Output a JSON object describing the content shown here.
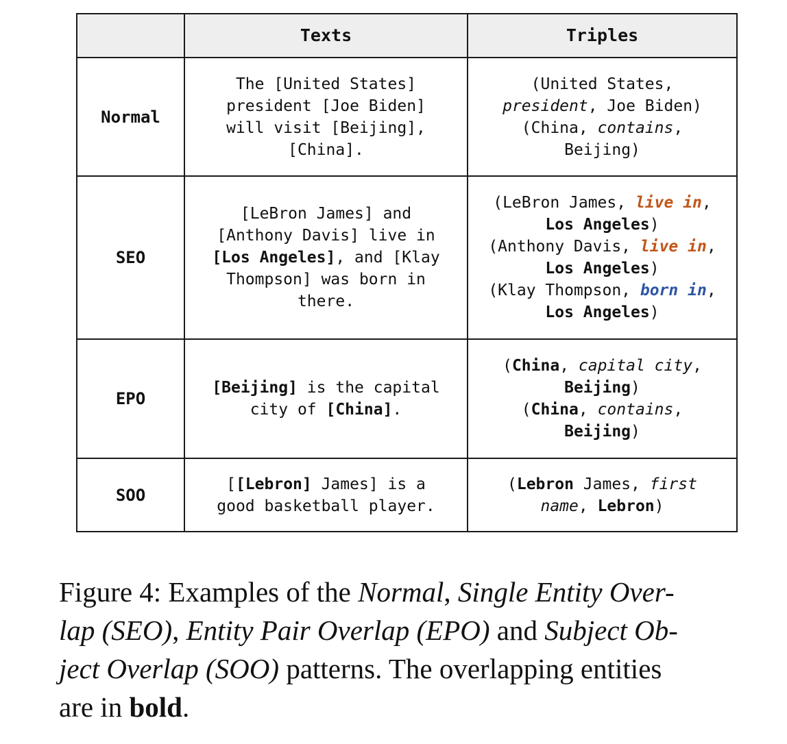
{
  "colors": {
    "relation_orange": "#c0561a",
    "relation_blue": "#2f55a4",
    "header_background": "#eeeeee"
  },
  "table": {
    "headers": {
      "texts": "Texts",
      "triples": "Triples"
    },
    "rows": [
      {
        "label": "Normal",
        "text_lines": [
          [
            {
              "t": "The [United States]"
            }
          ],
          [
            {
              "t": "president [Joe Biden]"
            }
          ],
          [
            {
              "t": "will visit [Beijing],"
            }
          ],
          [
            {
              "t": "[China]."
            }
          ]
        ],
        "triple_lines": [
          [
            {
              "t": "(United States,"
            }
          ],
          [
            {
              "t": "president",
              "s": "i"
            },
            {
              "t": ", Joe Biden)"
            }
          ],
          [
            {
              "t": "(China, "
            },
            {
              "t": "contains",
              "s": "i"
            },
            {
              "t": ","
            }
          ],
          [
            {
              "t": "Beijing)"
            }
          ]
        ]
      },
      {
        "label": "SEO",
        "text_lines": [
          [
            {
              "t": "[LeBron James] and"
            }
          ],
          [
            {
              "t": "[Anthony Davis] live in"
            }
          ],
          [
            {
              "t": "[Los Angeles]",
              "s": "b"
            },
            {
              "t": ", and [Klay"
            }
          ],
          [
            {
              "t": "Thompson] was born in"
            }
          ],
          [
            {
              "t": "there."
            }
          ]
        ],
        "triple_lines": [
          [
            {
              "t": "(LeBron James, "
            },
            {
              "t": "live in",
              "s": "o"
            },
            {
              "t": ","
            }
          ],
          [
            {
              "t": "Los Angeles",
              "s": "b"
            },
            {
              "t": ")"
            }
          ],
          [
            {
              "t": "(Anthony Davis, "
            },
            {
              "t": "live in",
              "s": "o"
            },
            {
              "t": ","
            }
          ],
          [
            {
              "t": "Los Angeles",
              "s": "b"
            },
            {
              "t": ")"
            }
          ],
          [
            {
              "t": "(Klay Thompson, "
            },
            {
              "t": "born in",
              "s": "u"
            },
            {
              "t": ","
            }
          ],
          [
            {
              "t": "Los Angeles",
              "s": "b"
            },
            {
              "t": ")"
            }
          ]
        ]
      },
      {
        "label": "EPO",
        "text_lines": [
          [
            {
              "t": "[Beijing]",
              "s": "b"
            },
            {
              "t": " is the capital"
            }
          ],
          [
            {
              "t": "city of "
            },
            {
              "t": "[China]",
              "s": "b"
            },
            {
              "t": "."
            }
          ]
        ],
        "triple_lines": [
          [
            {
              "t": "("
            },
            {
              "t": "China",
              "s": "b"
            },
            {
              "t": ", "
            },
            {
              "t": "capital city",
              "s": "i"
            },
            {
              "t": ","
            }
          ],
          [
            {
              "t": "Beijing",
              "s": "b"
            },
            {
              "t": ")"
            }
          ],
          [
            {
              "t": "("
            },
            {
              "t": "China",
              "s": "b"
            },
            {
              "t": ", "
            },
            {
              "t": "contains",
              "s": "i"
            },
            {
              "t": ","
            }
          ],
          [
            {
              "t": "Beijing",
              "s": "b"
            },
            {
              "t": ")"
            }
          ]
        ]
      },
      {
        "label": "SOO",
        "text_lines": [
          [
            {
              "t": "[",
              "s": ""
            },
            {
              "t": "[Lebron]",
              "s": "b"
            },
            {
              "t": " James] is a"
            }
          ],
          [
            {
              "t": "good basketball player."
            }
          ]
        ],
        "triple_lines": [
          [
            {
              "t": "("
            },
            {
              "t": "Lebron",
              "s": "b"
            },
            {
              "t": " James, "
            },
            {
              "t": "first",
              "s": "i"
            }
          ],
          [
            {
              "t": "name",
              "s": "i"
            },
            {
              "t": ", "
            },
            {
              "t": "Lebron",
              "s": "b"
            },
            {
              "t": ")"
            }
          ]
        ]
      }
    ]
  },
  "caption": {
    "lines": [
      [
        {
          "t": "Figure 4: Examples of the "
        },
        {
          "t": "Normal",
          "s": "i"
        },
        {
          "t": ", "
        },
        {
          "t": "Single Entity Over-",
          "s": "i"
        }
      ],
      [
        {
          "t": "lap (SEO)",
          "s": "i"
        },
        {
          "t": ", "
        },
        {
          "t": "Entity Pair Overlap (EPO)",
          "s": "i"
        },
        {
          "t": " and "
        },
        {
          "t": "Subject Ob-",
          "s": "i"
        }
      ],
      [
        {
          "t": "ject Overlap (SOO)",
          "s": "i"
        },
        {
          "t": " patterns.  The overlapping entities"
        }
      ],
      [
        {
          "t": "are in "
        },
        {
          "t": "bold",
          "s": "b"
        },
        {
          "t": "."
        }
      ]
    ]
  }
}
